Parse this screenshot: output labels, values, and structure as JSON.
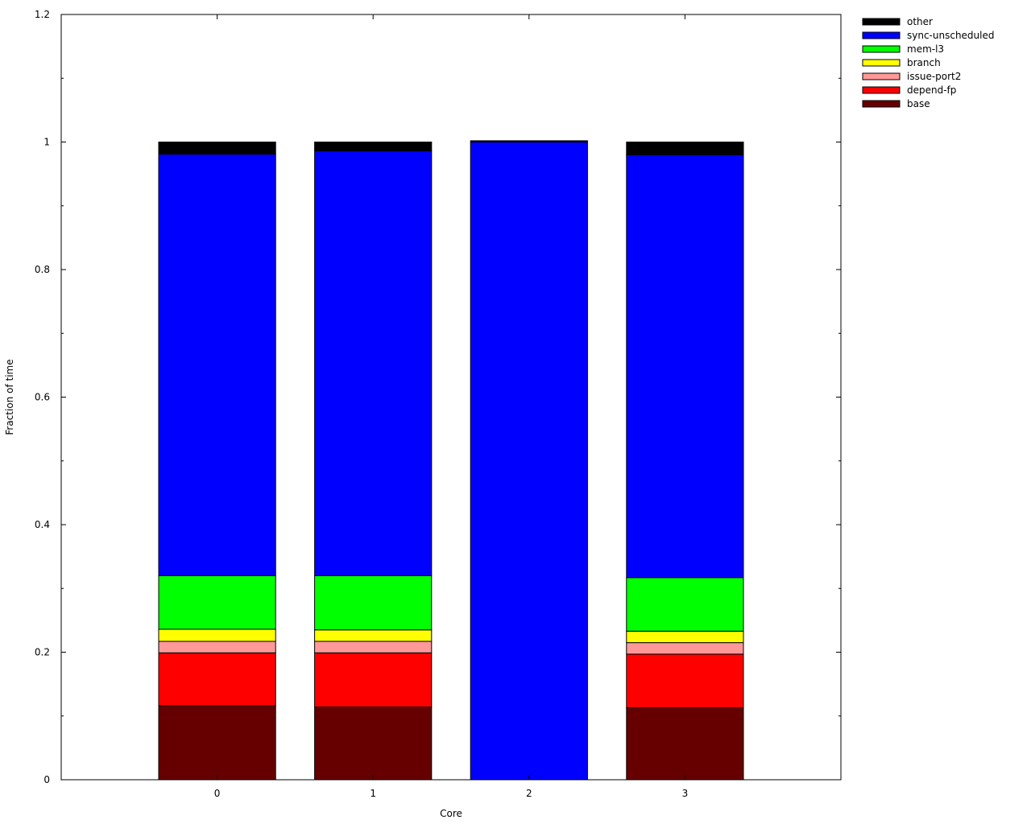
{
  "chart_data": {
    "type": "bar",
    "stacked": true,
    "categories": [
      "0",
      "1",
      "2",
      "3"
    ],
    "xlabel": "Core",
    "ylabel": "Fraction of time",
    "ylim": [
      0,
      1.2
    ],
    "yticks": [
      0,
      0.2,
      0.4,
      0.6,
      0.8,
      1,
      1.2
    ],
    "ytick_labels": [
      "0",
      "0.2",
      "0.4",
      "0.6",
      "0.8",
      "1",
      "1.2"
    ],
    "grid": false,
    "legend_position": "outside-top-right",
    "series": [
      {
        "name": "base",
        "color": "#660000",
        "values": [
          0.116,
          0.114,
          0,
          0.113
        ]
      },
      {
        "name": "depend-fp",
        "color": "#ff0000",
        "values": [
          0.083,
          0.085,
          0,
          0.084
        ]
      },
      {
        "name": "issue-port2",
        "color": "#ff9999",
        "values": [
          0.018,
          0.018,
          0,
          0.018
        ]
      },
      {
        "name": "branch",
        "color": "#ffff00",
        "values": [
          0.019,
          0.018,
          0,
          0.018
        ]
      },
      {
        "name": "mem-l3",
        "color": "#00ff00",
        "values": [
          0.084,
          0.085,
          0,
          0.084
        ]
      },
      {
        "name": "sync-unscheduled",
        "color": "#0000ff",
        "values": [
          0.661,
          0.666,
          1.0,
          0.663
        ]
      },
      {
        "name": "other",
        "color": "#000000",
        "values": [
          0.019,
          0.014,
          0.002,
          0.02
        ]
      }
    ]
  }
}
